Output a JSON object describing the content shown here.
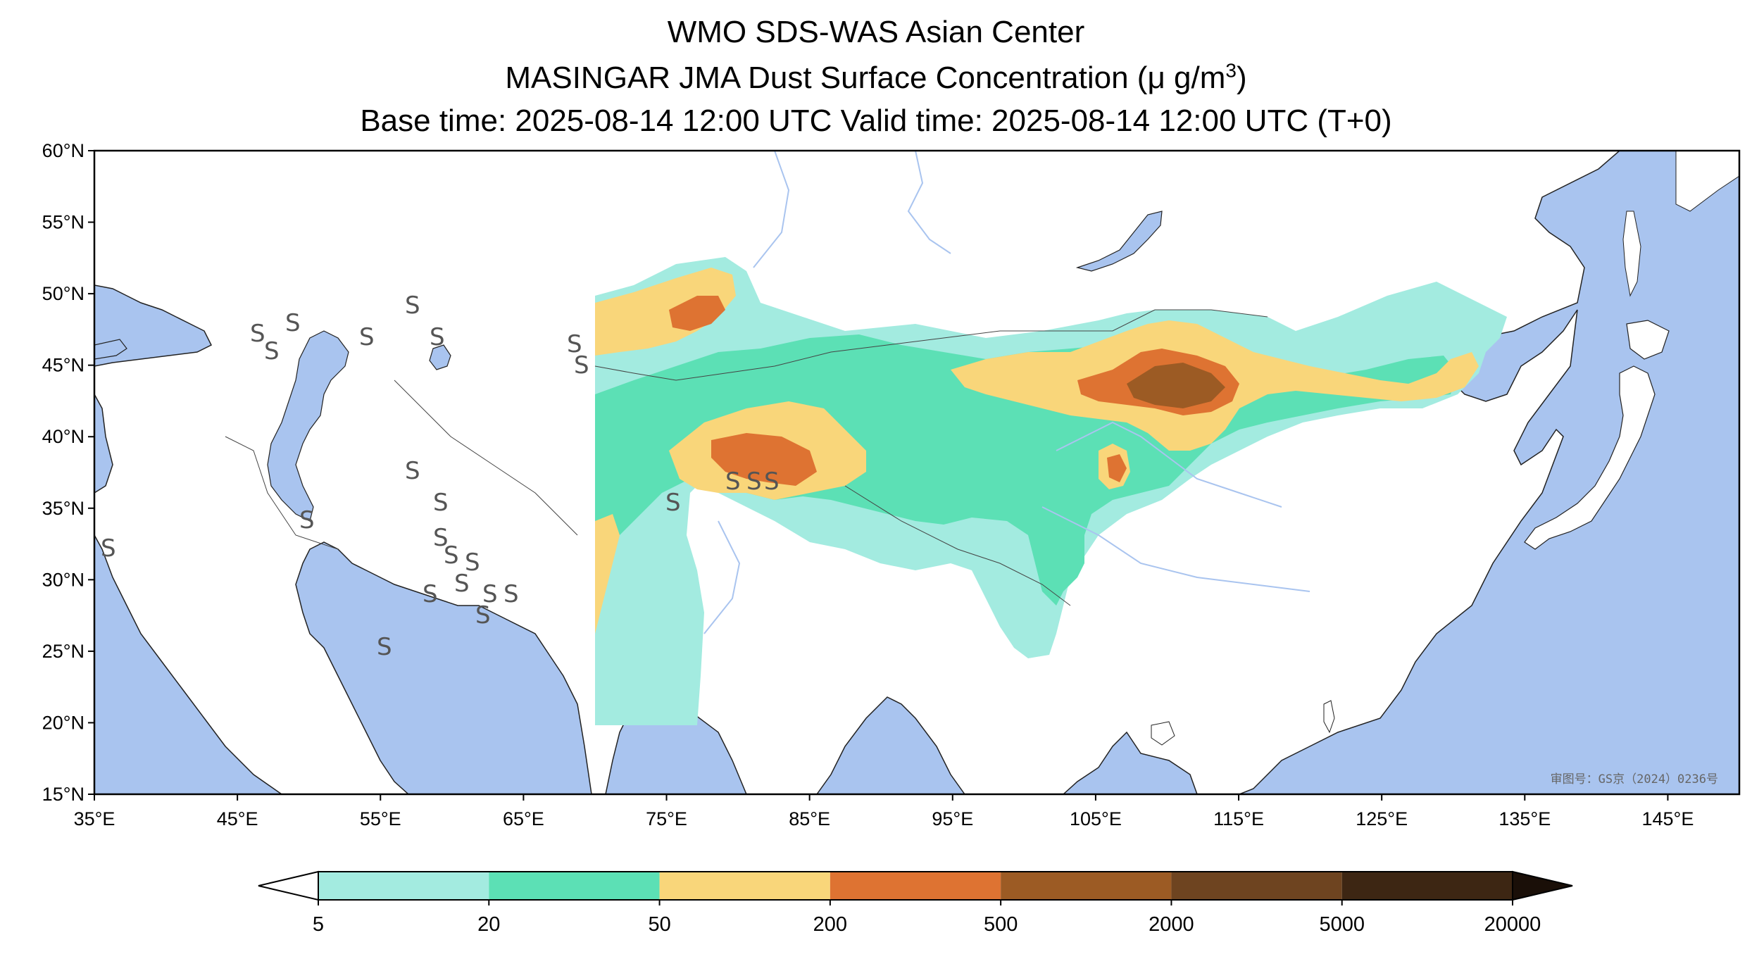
{
  "title": {
    "line1": "WMO SDS-WAS Asian Center",
    "line2_prefix": "MASINGAR JMA Dust Surface Concentration (",
    "line2_unit": "μ g/m",
    "line2_sup": "3",
    "line2_suffix": ")",
    "line3": "Base time: 2025-08-14 12:00 UTC Valid time: 2025-08-14 12:00 UTC (T+0)"
  },
  "map": {
    "extent": {
      "lon_min": 35,
      "lon_max": 150,
      "lat_min": 15,
      "lat_max": 60
    },
    "lat_ticks": [
      {
        "value": 60,
        "label": "60°N"
      },
      {
        "value": 55,
        "label": "55°N"
      },
      {
        "value": 50,
        "label": "50°N"
      },
      {
        "value": 45,
        "label": "45°N"
      },
      {
        "value": 40,
        "label": "40°N"
      },
      {
        "value": 35,
        "label": "35°N"
      },
      {
        "value": 30,
        "label": "30°N"
      },
      {
        "value": 25,
        "label": "25°N"
      },
      {
        "value": 20,
        "label": "20°N"
      },
      {
        "value": 15,
        "label": "15°N"
      }
    ],
    "lon_ticks": [
      {
        "value": 35,
        "label": "35°E"
      },
      {
        "value": 45,
        "label": "45°E"
      },
      {
        "value": 55,
        "label": "55°E"
      },
      {
        "value": 65,
        "label": "65°E"
      },
      {
        "value": 75,
        "label": "75°E"
      },
      {
        "value": 85,
        "label": "85°E"
      },
      {
        "value": 95,
        "label": "95°E"
      },
      {
        "value": 105,
        "label": "105°E"
      },
      {
        "value": 115,
        "label": "115°E"
      },
      {
        "value": 125,
        "label": "125°E"
      },
      {
        "value": 135,
        "label": "135°E"
      },
      {
        "value": 145,
        "label": "145°E"
      }
    ],
    "approval_number": "审图号：GS京（2024）0236号",
    "dust_symbol": "S",
    "colors": {
      "ocean": "#a9c4ef",
      "land": "#ffffff",
      "river": "#a9c4ef",
      "border": "#333333"
    }
  },
  "colorbar": {
    "labels": [
      "5",
      "20",
      "50",
      "200",
      "500",
      "2000",
      "5000",
      "20000"
    ],
    "colors": [
      "#a3ebe0",
      "#5ce0b5",
      "#f9d67a",
      "#de7332",
      "#9c5b24",
      "#6e4420",
      "#3d2613"
    ],
    "under_color": "#ffffff",
    "over_color": "#1a0f08"
  }
}
